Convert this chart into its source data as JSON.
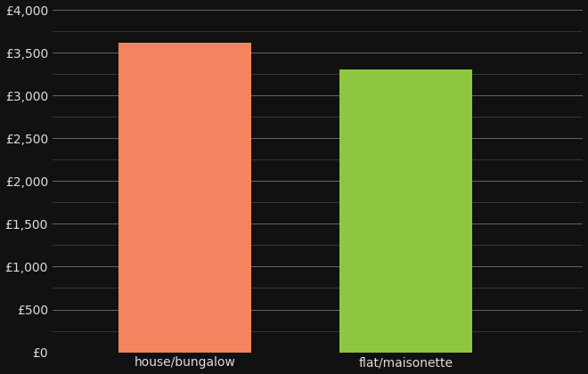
{
  "categories": [
    "house/bungalow",
    "flat/maisonette"
  ],
  "values": [
    3620,
    3300
  ],
  "bar_colors": [
    "#F4845F",
    "#8DC63F"
  ],
  "background_color": "#111111",
  "text_color": "#dddddd",
  "grid_color_major": "#666666",
  "grid_color_minor": "#444444",
  "ylim": [
    0,
    4000
  ],
  "yticks_major": [
    0,
    500,
    1000,
    1500,
    2000,
    2500,
    3000,
    3500,
    4000
  ],
  "yticks_minor": [
    250,
    750,
    1250,
    1750,
    2250,
    2750,
    3250,
    3750
  ],
  "bar_positions": [
    1,
    2
  ],
  "bar_width": 0.6,
  "xlim": [
    0.4,
    2.8
  ]
}
